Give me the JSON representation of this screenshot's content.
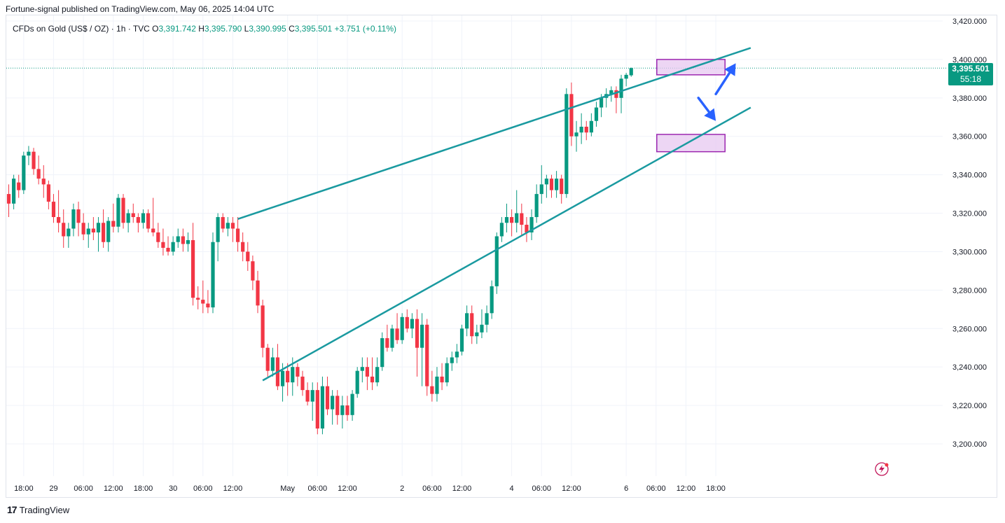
{
  "header": {
    "published": "Fortune-signal published on TradingView.com, May 06, 2025 14:04 UTC"
  },
  "legend": {
    "symbol": "CFDs on Gold (US$ / OZ) · 1h · TVC",
    "open_label": "O",
    "open": "3,391.742",
    "high_label": "H",
    "high": "3,395.790",
    "low_label": "L",
    "low": "3,390.995",
    "close_label": "C",
    "close": "3,395.501",
    "change": "+3.751 (+0.11%)"
  },
  "price_badge": {
    "price": "3,395.501",
    "countdown": "55:18"
  },
  "brand": {
    "logo": "17",
    "name": "TradingView"
  },
  "colors": {
    "up": "#089981",
    "down": "#f23645",
    "trendline": "#1a9aa0",
    "zone_fill": "#e7c8f0",
    "zone_stroke": "#9c27b0",
    "arrow": "#2962ff"
  },
  "chart_data": {
    "type": "candlestick",
    "ylim": [
      3180,
      3425
    ],
    "y_ticks": [
      "3,420.000",
      "3,400.000",
      "3,380.000",
      "3,360.000",
      "3,340.000",
      "3,320.000",
      "3,300.000",
      "3,280.000",
      "3,260.000",
      "3,240.000",
      "3,220.000",
      "3,200.000"
    ],
    "y_tick_values": [
      3420,
      3400,
      3380,
      3360,
      3340,
      3320,
      3300,
      3280,
      3260,
      3240,
      3220,
      3200
    ],
    "x_ticks": [
      {
        "label": "18:00",
        "bar": 3
      },
      {
        "label": "29",
        "bar": 9
      },
      {
        "label": "06:00",
        "bar": 15
      },
      {
        "label": "12:00",
        "bar": 21
      },
      {
        "label": "18:00",
        "bar": 27
      },
      {
        "label": "30",
        "bar": 33
      },
      {
        "label": "06:00",
        "bar": 39
      },
      {
        "label": "12:00",
        "bar": 45
      },
      {
        "label": "May",
        "bar": 56
      },
      {
        "label": "06:00",
        "bar": 62
      },
      {
        "label": "12:00",
        "bar": 68
      },
      {
        "label": "2",
        "bar": 79
      },
      {
        "label": "06:00",
        "bar": 85
      },
      {
        "label": "12:00",
        "bar": 91
      },
      {
        "label": "4",
        "bar": 101
      },
      {
        "label": "06:00",
        "bar": 107
      },
      {
        "label": "12:00",
        "bar": 113
      },
      {
        "label": "6",
        "bar": 124
      },
      {
        "label": "06:00",
        "bar": 130
      },
      {
        "label": "12:00",
        "bar": 136
      },
      {
        "label": "18:00",
        "bar": 142
      }
    ],
    "current_price": 3395.501,
    "candles": [
      [
        3330,
        3335,
        3318,
        3325
      ],
      [
        3325,
        3340,
        3322,
        3338
      ],
      [
        3336,
        3340,
        3328,
        3332
      ],
      [
        3332,
        3352,
        3330,
        3350
      ],
      [
        3350,
        3355,
        3345,
        3352
      ],
      [
        3352,
        3354,
        3340,
        3343
      ],
      [
        3343,
        3350,
        3335,
        3338
      ],
      [
        3338,
        3345,
        3328,
        3335
      ],
      [
        3335,
        3337,
        3322,
        3326
      ],
      [
        3326,
        3330,
        3315,
        3318
      ],
      [
        3318,
        3332,
        3310,
        3315
      ],
      [
        3315,
        3322,
        3302,
        3308
      ],
      [
        3308,
        3315,
        3302,
        3312
      ],
      [
        3312,
        3325,
        3308,
        3322
      ],
      [
        3322,
        3326,
        3308,
        3315
      ],
      [
        3315,
        3320,
        3306,
        3309
      ],
      [
        3309,
        3315,
        3302,
        3312
      ],
      [
        3312,
        3318,
        3306,
        3310
      ],
      [
        3310,
        3318,
        3300,
        3315
      ],
      [
        3315,
        3322,
        3302,
        3305
      ],
      [
        3305,
        3318,
        3300,
        3316
      ],
      [
        3316,
        3325,
        3310,
        3313
      ],
      [
        3313,
        3330,
        3310,
        3328
      ],
      [
        3328,
        3330,
        3312,
        3315
      ],
      [
        3315,
        3322,
        3310,
        3320
      ],
      [
        3320,
        3325,
        3315,
        3318
      ],
      [
        3318,
        3320,
        3310,
        3315
      ],
      [
        3315,
        3322,
        3312,
        3320
      ],
      [
        3320,
        3322,
        3310,
        3312
      ],
      [
        3312,
        3328,
        3308,
        3310
      ],
      [
        3310,
        3315,
        3302,
        3305
      ],
      [
        3305,
        3312,
        3298,
        3302
      ],
      [
        3302,
        3308,
        3298,
        3300
      ],
      [
        3300,
        3308,
        3298,
        3305
      ],
      [
        3305,
        3312,
        3302,
        3308
      ],
      [
        3308,
        3312,
        3300,
        3304
      ],
      [
        3304,
        3310,
        3300,
        3306
      ],
      [
        3306,
        3315,
        3272,
        3276
      ],
      [
        3276,
        3282,
        3270,
        3275
      ],
      [
        3275,
        3285,
        3268,
        3273
      ],
      [
        3273,
        3280,
        3268,
        3271
      ],
      [
        3271,
        3310,
        3268,
        3305
      ],
      [
        3305,
        3320,
        3295,
        3318
      ],
      [
        3318,
        3320,
        3310,
        3312
      ],
      [
        3312,
        3318,
        3308,
        3315
      ],
      [
        3315,
        3318,
        3305,
        3312
      ],
      [
        3312,
        3318,
        3300,
        3305
      ],
      [
        3305,
        3310,
        3295,
        3300
      ],
      [
        3300,
        3305,
        3290,
        3295
      ],
      [
        3295,
        3298,
        3280,
        3285
      ],
      [
        3285,
        3290,
        3268,
        3272
      ],
      [
        3272,
        3275,
        3245,
        3250
      ],
      [
        3250,
        3252,
        3235,
        3238
      ],
      [
        3238,
        3250,
        3235,
        3245
      ],
      [
        3245,
        3252,
        3228,
        3230
      ],
      [
        3230,
        3242,
        3222,
        3238
      ],
      [
        3238,
        3242,
        3225,
        3232
      ],
      [
        3232,
        3245,
        3225,
        3240
      ],
      [
        3240,
        3242,
        3230,
        3235
      ],
      [
        3235,
        3238,
        3225,
        3228
      ],
      [
        3228,
        3232,
        3220,
        3222
      ],
      [
        3222,
        3232,
        3212,
        3228
      ],
      [
        3228,
        3232,
        3205,
        3208
      ],
      [
        3208,
        3235,
        3205,
        3230
      ],
      [
        3230,
        3235,
        3215,
        3218
      ],
      [
        3218,
        3228,
        3210,
        3225
      ],
      [
        3225,
        3228,
        3210,
        3215
      ],
      [
        3215,
        3225,
        3208,
        3220
      ],
      [
        3220,
        3225,
        3212,
        3215
      ],
      [
        3215,
        3228,
        3212,
        3226
      ],
      [
        3226,
        3240,
        3224,
        3238
      ],
      [
        3238,
        3245,
        3232,
        3240
      ],
      [
        3240,
        3245,
        3228,
        3235
      ],
      [
        3235,
        3245,
        3228,
        3232
      ],
      [
        3232,
        3245,
        3230,
        3240
      ],
      [
        3240,
        3258,
        3238,
        3255
      ],
      [
        3255,
        3262,
        3248,
        3250
      ],
      [
        3250,
        3262,
        3248,
        3260
      ],
      [
        3260,
        3268,
        3252,
        3254
      ],
      [
        3254,
        3268,
        3252,
        3266
      ],
      [
        3266,
        3270,
        3258,
        3260
      ],
      [
        3260,
        3268,
        3255,
        3265
      ],
      [
        3265,
        3270,
        3235,
        3250
      ],
      [
        3250,
        3268,
        3230,
        3262
      ],
      [
        3262,
        3265,
        3225,
        3230
      ],
      [
        3230,
        3238,
        3222,
        3226
      ],
      [
        3226,
        3240,
        3222,
        3235
      ],
      [
        3235,
        3242,
        3228,
        3232
      ],
      [
        3232,
        3245,
        3230,
        3242
      ],
      [
        3242,
        3248,
        3238,
        3245
      ],
      [
        3245,
        3252,
        3242,
        3248
      ],
      [
        3248,
        3262,
        3246,
        3260
      ],
      [
        3260,
        3272,
        3256,
        3268
      ],
      [
        3268,
        3272,
        3252,
        3256
      ],
      [
        3256,
        3262,
        3252,
        3258
      ],
      [
        3258,
        3270,
        3255,
        3262
      ],
      [
        3262,
        3272,
        3258,
        3268
      ],
      [
        3268,
        3285,
        3265,
        3282
      ],
      [
        3282,
        3310,
        3278,
        3308
      ],
      [
        3308,
        3318,
        3305,
        3315
      ],
      [
        3315,
        3325,
        3310,
        3318
      ],
      [
        3318,
        3322,
        3308,
        3315
      ],
      [
        3315,
        3332,
        3310,
        3320
      ],
      [
        3320,
        3325,
        3308,
        3314
      ],
      [
        3314,
        3318,
        3305,
        3310
      ],
      [
        3310,
        3322,
        3306,
        3318
      ],
      [
        3318,
        3335,
        3315,
        3330
      ],
      [
        3330,
        3345,
        3325,
        3335
      ],
      [
        3335,
        3340,
        3328,
        3338
      ],
      [
        3338,
        3340,
        3328,
        3332
      ],
      [
        3332,
        3342,
        3328,
        3338
      ],
      [
        3338,
        3340,
        3325,
        3330
      ],
      [
        3330,
        3385,
        3328,
        3382
      ],
      [
        3382,
        3388,
        3355,
        3360
      ],
      [
        3360,
        3368,
        3352,
        3362
      ],
      [
        3362,
        3372,
        3356,
        3365
      ],
      [
        3365,
        3368,
        3358,
        3362
      ],
      [
        3362,
        3372,
        3360,
        3368
      ],
      [
        3368,
        3378,
        3365,
        3375
      ],
      [
        3375,
        3382,
        3370,
        3380
      ],
      [
        3380,
        3385,
        3375,
        3382
      ],
      [
        3382,
        3386,
        3378,
        3384
      ],
      [
        3384,
        3386,
        3372,
        3380
      ],
      [
        3380,
        3392,
        3372,
        3390
      ],
      [
        3390,
        3393,
        3386,
        3392
      ],
      [
        3391.742,
        3395.79,
        3390.995,
        3395.501
      ]
    ],
    "trendlines": [
      {
        "from": {
          "bar": 46,
          "price": 3317
        },
        "to": {
          "bar": 149,
          "price": 3406
        }
      },
      {
        "from": {
          "bar": 51,
          "price": 3233
        },
        "to": {
          "bar": 149,
          "price": 3375
        }
      }
    ],
    "zones": [
      {
        "bar_from": 130,
        "bar_to": 143,
        "price_top": 3400,
        "price_bottom": 3392
      },
      {
        "bar_from": 130,
        "bar_to": 143,
        "price_top": 3361,
        "price_bottom": 3352
      }
    ],
    "arrows": [
      {
        "from": {
          "bar": 142,
          "price": 3382
        },
        "to": {
          "bar": 146,
          "price": 3398
        }
      },
      {
        "from": {
          "bar": 138.5,
          "price": 3380
        },
        "to": {
          "bar": 142,
          "price": 3368
        }
      }
    ]
  }
}
